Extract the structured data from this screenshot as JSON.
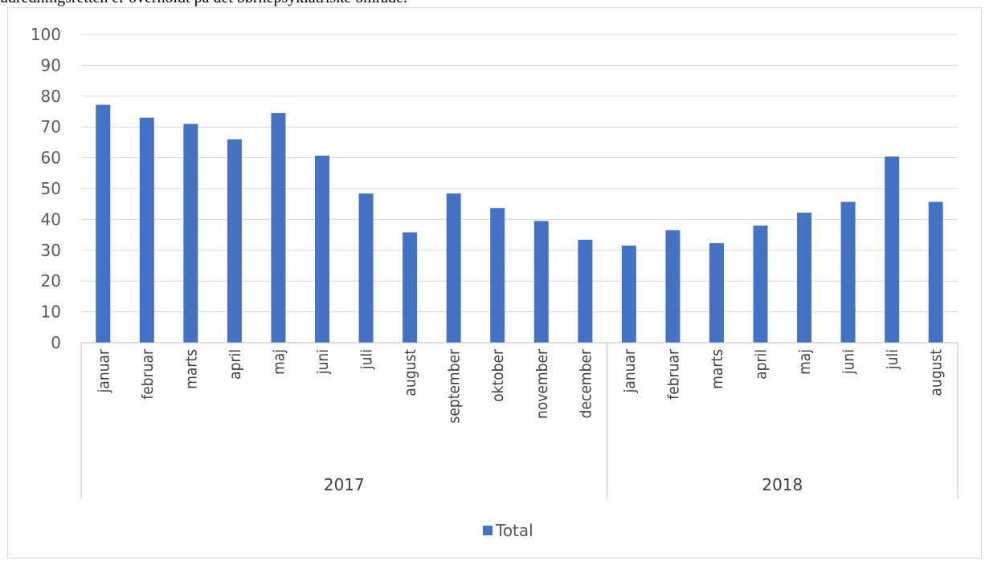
{
  "header_text": "udredningsretten er overholdt på det børnepsykiatriske område.",
  "chart_data": {
    "type": "bar",
    "title": "",
    "xlabel": "",
    "ylabel": "",
    "ylim": [
      0,
      100
    ],
    "yticks": [
      0,
      10,
      20,
      30,
      40,
      50,
      60,
      70,
      80,
      90,
      100
    ],
    "grid": true,
    "legend_position": "bottom",
    "bar_color": "#4472c4",
    "groups": [
      {
        "label": "2017",
        "categories": [
          "januar",
          "februar",
          "marts",
          "april",
          "maj",
          "juni",
          "juli",
          "august",
          "september",
          "oktober",
          "november",
          "december"
        ]
      },
      {
        "label": "2018",
        "categories": [
          "januar",
          "februar",
          "marts",
          "april",
          "maj",
          "juni",
          "juli",
          "august"
        ]
      }
    ],
    "categories": [
      "januar",
      "februar",
      "marts",
      "april",
      "maj",
      "juni",
      "juli",
      "august",
      "september",
      "oktober",
      "november",
      "december",
      "januar",
      "februar",
      "marts",
      "april",
      "maj",
      "juni",
      "juli",
      "august"
    ],
    "series": [
      {
        "name": "Total",
        "values": [
          77.2,
          73.0,
          71.0,
          66.0,
          74.5,
          60.7,
          48.4,
          35.8,
          48.4,
          43.7,
          39.5,
          33.4,
          31.5,
          36.5,
          32.3,
          38.0,
          42.2,
          45.7,
          60.4,
          45.7
        ]
      }
    ]
  }
}
